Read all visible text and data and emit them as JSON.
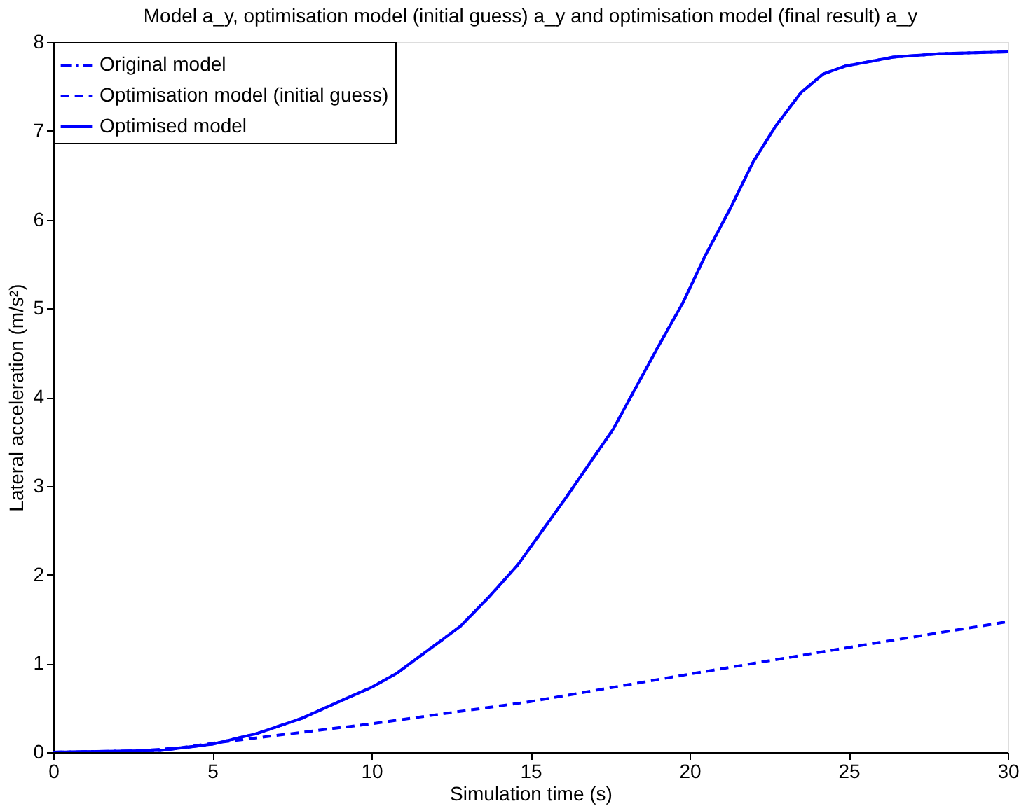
{
  "chart_data": {
    "type": "line",
    "title": "Model a_y, optimisation model (initial guess) a_y and optimisation model (final result) a_y",
    "xlabel": "Simulation time (s)",
    "ylabel": "Lateral acceleration (m/s²)",
    "xlim": [
      0,
      30
    ],
    "xticks": [
      0,
      5,
      10,
      15,
      20,
      25,
      30
    ],
    "ylim": [
      0,
      8
    ],
    "yticks": [
      0,
      1,
      2,
      3,
      4,
      5,
      6,
      7,
      8
    ],
    "grid": false,
    "legend": "top left",
    "marker": "none",
    "series": [
      {
        "name": "Original model",
        "color": "#0000ff",
        "line_style": "dashdot",
        "x": [
          0,
          3.4,
          5,
          6.4,
          7.8,
          9.3,
          10,
          10.8,
          12.2,
          12.8,
          13.7,
          14.6,
          16.1,
          17.6,
          19,
          19.8,
          20.5,
          21.3,
          22,
          22.7,
          23.5,
          24.2,
          24.9,
          26.4,
          27.9,
          30
        ],
        "values": [
          0,
          0.02,
          0.09,
          0.21,
          0.38,
          0.62,
          0.73,
          0.89,
          1.26,
          1.42,
          1.75,
          2.11,
          2.86,
          3.64,
          4.56,
          5.07,
          5.6,
          6.14,
          6.65,
          7.05,
          7.43,
          7.64,
          7.73,
          7.83,
          7.87,
          7.89
        ]
      },
      {
        "name": "Optimisation model (initial guess)",
        "color": "#0000ff",
        "line_style": "dashed",
        "x": [
          0,
          2.5,
          4,
          5,
          10,
          15,
          20,
          25,
          30
        ],
        "values": [
          0,
          0.01,
          0.05,
          0.1,
          0.32,
          0.57,
          0.88,
          1.18,
          1.47
        ]
      },
      {
        "name": "Optimised model",
        "color": "#0000ff",
        "line_style": "solid",
        "x": [
          0,
          3.4,
          5,
          6.4,
          7.8,
          9.3,
          10,
          10.8,
          12.2,
          12.8,
          13.7,
          14.6,
          16.1,
          17.6,
          19,
          19.8,
          20.5,
          21.3,
          22,
          22.7,
          23.5,
          24.2,
          24.9,
          26.4,
          27.9,
          30
        ],
        "values": [
          0,
          0.02,
          0.09,
          0.21,
          0.38,
          0.62,
          0.73,
          0.89,
          1.26,
          1.42,
          1.75,
          2.11,
          2.86,
          3.64,
          4.56,
          5.07,
          5.6,
          6.14,
          6.65,
          7.05,
          7.43,
          7.64,
          7.73,
          7.83,
          7.87,
          7.89
        ]
      }
    ]
  }
}
